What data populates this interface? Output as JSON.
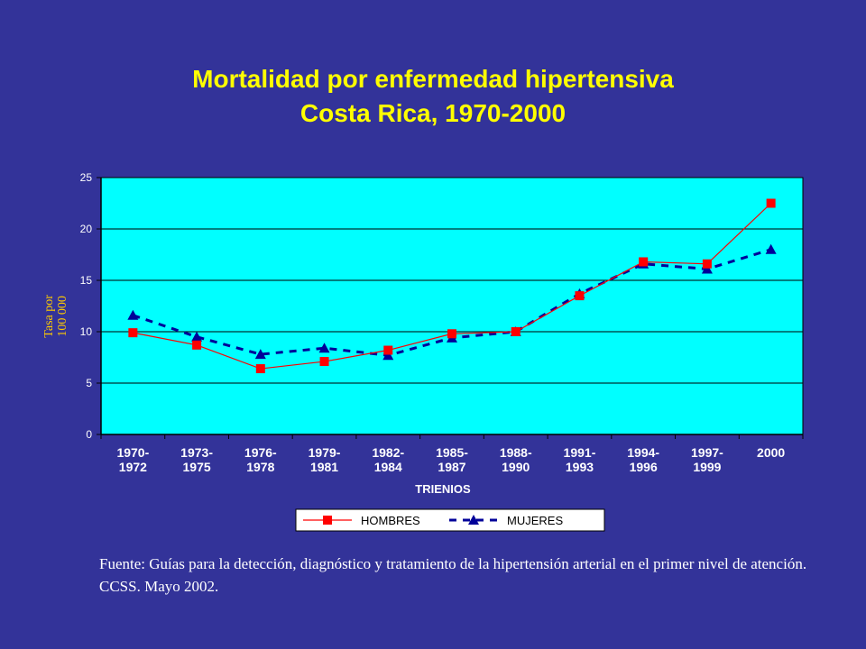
{
  "slide": {
    "title_line1": "Mortalidad por enfermedad hipertensiva",
    "title_line2": "Costa Rica, 1970-2000",
    "source_note": "Fuente:  Guías para la detección, diagnóstico y tratamiento de la hipertensión arterial  en el primer nivel de atención.  CCSS.  Mayo 2002."
  },
  "colors": {
    "background": "#333399",
    "title": "#FFFF00",
    "plot_area": "#00FFFF",
    "hombres": "#FF0000",
    "mujeres": "#000099",
    "ylabel": "#FFCC00"
  },
  "chart_data": {
    "type": "line",
    "xlabel": "TRIENIOS",
    "ylabel": "Tasa por 100 000",
    "ylim": [
      0,
      25
    ],
    "yticks": [
      0,
      5,
      10,
      15,
      20,
      25
    ],
    "grid": true,
    "legend_position": "bottom",
    "categories": [
      [
        "1970-",
        "1972"
      ],
      [
        "1973-",
        "1975"
      ],
      [
        "1976-",
        "1978"
      ],
      [
        "1979-",
        "1981"
      ],
      [
        "1982-",
        "1984"
      ],
      [
        "1985-",
        "1987"
      ],
      [
        "1988-",
        "1990"
      ],
      [
        "1991-",
        "1993"
      ],
      [
        "1994-",
        "1996"
      ],
      [
        "1997-",
        "1999"
      ],
      [
        "2000"
      ]
    ],
    "series": [
      {
        "name": "HOMBRES",
        "marker": "square",
        "line": "solid",
        "values": [
          9.9,
          8.7,
          6.4,
          7.1,
          8.2,
          9.8,
          10.0,
          13.5,
          16.8,
          16.6,
          22.5
        ]
      },
      {
        "name": "MUJERES",
        "marker": "triangle",
        "line": "dashed",
        "values": [
          11.6,
          9.5,
          7.8,
          8.4,
          7.7,
          9.4,
          10.0,
          13.7,
          16.6,
          16.1,
          18.0
        ]
      }
    ]
  }
}
